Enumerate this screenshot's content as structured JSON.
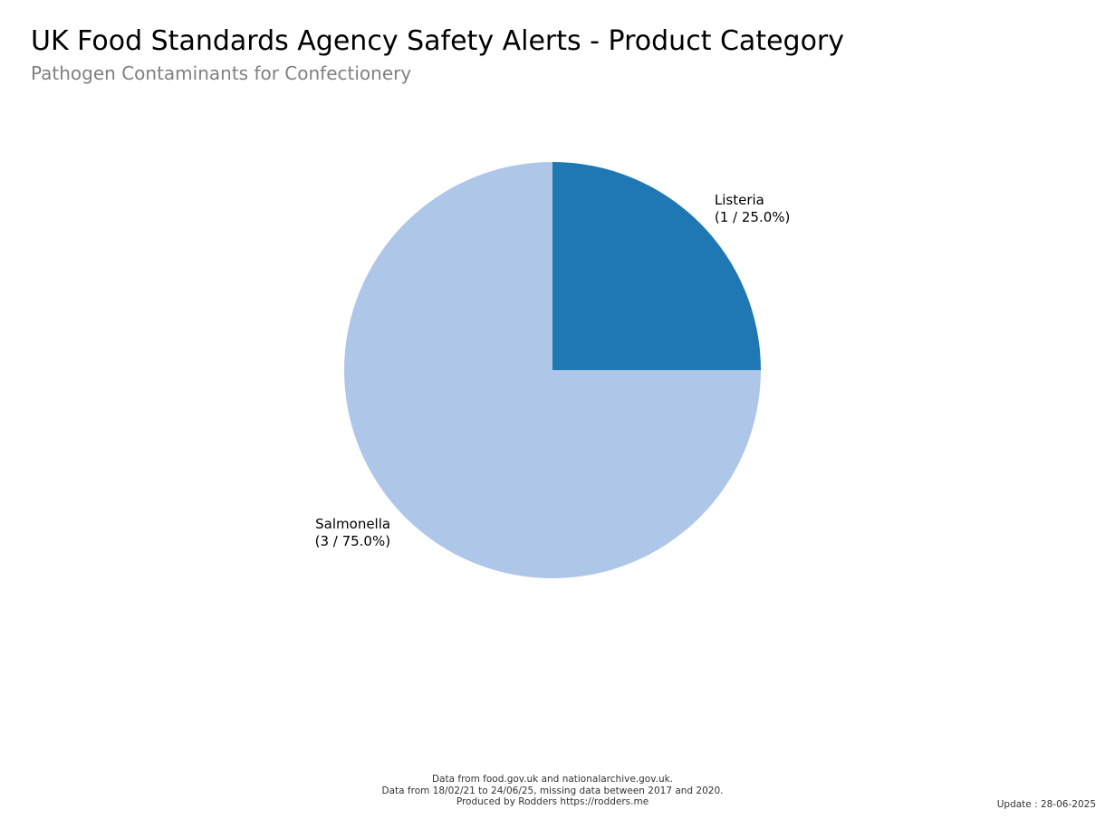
{
  "chart_data": {
    "type": "pie",
    "title": "UK Food Standards Agency Safety Alerts - Product Category",
    "subtitle": "Pathogen Contaminants for Confectionery",
    "slices": [
      {
        "label": "Listeria",
        "value": 1,
        "percent_label": "(1 / 25.0%)",
        "color": "#1f77b4"
      },
      {
        "label": "Salmonella",
        "value": 3,
        "percent_label": "(3 / 75.0%)",
        "color": "#aec7e8"
      }
    ],
    "start_angle_deg": 90,
    "direction": "clockwise"
  },
  "footer": {
    "line1": "Data from food.gov.uk and nationalarchive.gov.uk.",
    "line2": "Data from 18/02/21 to 24/06/25, missing data between 2017 and 2020.",
    "line3": "Produced by Rodders https://rodders.me"
  },
  "update": "Update : 28-06-2025"
}
